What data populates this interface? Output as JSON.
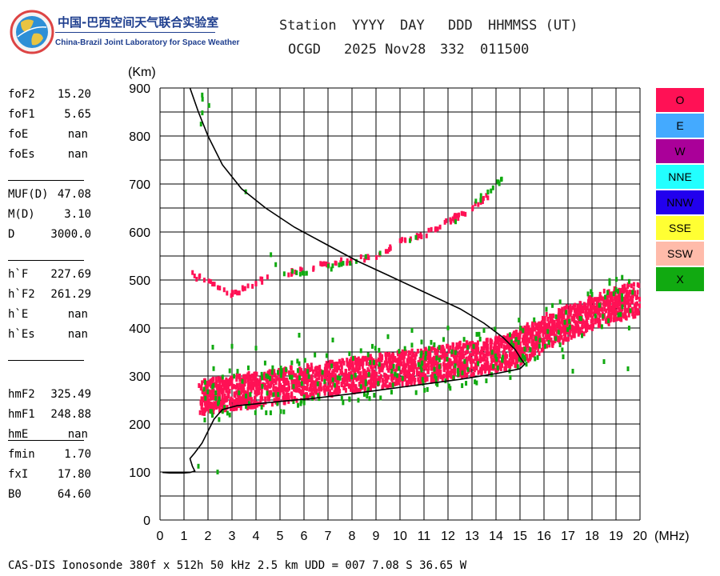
{
  "logo": {
    "title": "中国-巴西空间天气联合实验室",
    "subtitle": "China-Brazil Joint Laboratory for Space Weather"
  },
  "header": {
    "labels": [
      "Station",
      "YYYY",
      "DAY",
      "DDD",
      "HHMMSS (UT)"
    ],
    "values": [
      "OCGD",
      "2025 Nov28",
      "332",
      "011500"
    ]
  },
  "params": [
    {
      "name": "foF2",
      "value": "15.20"
    },
    {
      "name": "foF1",
      "value": "5.65"
    },
    {
      "name": "foE",
      "value": "nan"
    },
    {
      "name": "foEs",
      "value": "nan"
    },
    {
      "name": "MUF(D)",
      "value": "47.08"
    },
    {
      "name": "M(D)",
      "value": "3.10"
    },
    {
      "name": "D",
      "value": "3000.0"
    },
    {
      "name": "h`F",
      "value": "227.69"
    },
    {
      "name": "h`F2",
      "value": "261.29"
    },
    {
      "name": "h`E",
      "value": "nan"
    },
    {
      "name": "h`Es",
      "value": "nan"
    },
    {
      "name": "hmF2",
      "value": "325.49"
    },
    {
      "name": "hmF1",
      "value": "248.88"
    },
    {
      "name": "hmE",
      "value": "nan"
    },
    {
      "name": "fmin",
      "value": "1.70"
    },
    {
      "name": "fxI",
      "value": "17.80"
    },
    {
      "name": "B0",
      "value": "64.60"
    }
  ],
  "footer": "CAS-DIS Ionosonde 380f x 512h 50 kHz 2.5 km UDD = 007 7.08 S 36.65 W",
  "legend": [
    {
      "label": "O",
      "color": "#ff1155"
    },
    {
      "label": "E",
      "color": "#44aaff"
    },
    {
      "label": "W",
      "color": "#aa0099"
    },
    {
      "label": "NNE",
      "color": "#22ffff"
    },
    {
      "label": "NNW",
      "color": "#2200ee"
    },
    {
      "label": "SSE",
      "color": "#ffff33"
    },
    {
      "label": "SSW",
      "color": "#ffbbaa"
    },
    {
      "label": "X",
      "color": "#11aa11"
    }
  ],
  "chart_data": {
    "type": "scatter",
    "xlabel": "(MHz)",
    "ylabel": "(Km)",
    "xlim": [
      0,
      20
    ],
    "ylim": [
      0,
      900
    ],
    "xticks": [
      "0",
      "1",
      "2",
      "3",
      "4",
      "5",
      "6",
      "7",
      "8",
      "9",
      "10",
      "11",
      "12",
      "13",
      "14",
      "15",
      "16",
      "17",
      "18",
      "19",
      "20"
    ],
    "yticks": [
      "0",
      "100",
      "200",
      "300",
      "400",
      "500",
      "600",
      "700",
      "800",
      "900"
    ],
    "grid": true,
    "legend_placement": "right",
    "profile_curve": [
      [
        1.25,
        900
      ],
      [
        1.6,
        850
      ],
      [
        2.0,
        800
      ],
      [
        2.6,
        740
      ],
      [
        3.4,
        690
      ],
      [
        4.4,
        650
      ],
      [
        5.6,
        610
      ],
      [
        6.9,
        575
      ],
      [
        8.2,
        540
      ],
      [
        9.5,
        510
      ],
      [
        11.0,
        475
      ],
      [
        12.5,
        440
      ],
      [
        13.5,
        410
      ],
      [
        14.3,
        380
      ],
      [
        14.8,
        355
      ],
      [
        15.05,
        335
      ],
      [
        15.2,
        325
      ],
      [
        15.0,
        315
      ],
      [
        14.0,
        305
      ],
      [
        12.5,
        293
      ],
      [
        11.0,
        283
      ],
      [
        9.5,
        273
      ],
      [
        8.0,
        263
      ],
      [
        6.5,
        254
      ],
      [
        5.0,
        247
      ],
      [
        4.0,
        242
      ],
      [
        3.2,
        238
      ],
      [
        2.6,
        230
      ],
      [
        2.25,
        210
      ],
      [
        2.0,
        185
      ],
      [
        1.75,
        160
      ],
      [
        1.45,
        140
      ],
      [
        1.25,
        128
      ],
      [
        1.35,
        112
      ],
      [
        1.45,
        102
      ],
      [
        1.25,
        99
      ],
      [
        1.0,
        98
      ],
      [
        0.4,
        98
      ],
      [
        0.1,
        99
      ]
    ],
    "o_trace_main": [
      [
        1.7,
        255
      ],
      [
        2.5,
        262
      ],
      [
        3.5,
        268
      ],
      [
        4.5,
        275
      ],
      [
        5.5,
        282
      ],
      [
        6.5,
        290
      ],
      [
        7.5,
        297
      ],
      [
        8.5,
        305
      ],
      [
        9.5,
        312
      ],
      [
        10.5,
        318
      ],
      [
        11.5,
        325
      ],
      [
        12.5,
        333
      ],
      [
        13.5,
        340
      ],
      [
        14.5,
        350
      ],
      [
        15.2,
        365
      ],
      [
        16,
        390
      ],
      [
        17,
        410
      ],
      [
        18,
        430
      ],
      [
        19,
        450
      ],
      [
        20,
        460
      ]
    ],
    "o_trace_multihop": [
      [
        1.2,
        515
      ],
      [
        3.0,
        470
      ],
      [
        3.5,
        480
      ],
      [
        4.3,
        500
      ],
      [
        5.5,
        515
      ],
      [
        7.0,
        535
      ],
      [
        8.0,
        540
      ],
      [
        9.0,
        550
      ],
      [
        10.0,
        580
      ],
      [
        11.0,
        595
      ],
      [
        12.0,
        620
      ],
      [
        12.5,
        635
      ],
      [
        13.3,
        660
      ],
      [
        13.8,
        680
      ]
    ],
    "x_trace_multihop": [
      [
        1.7,
        825
      ],
      [
        1.75,
        898
      ],
      [
        5.0,
        510
      ],
      [
        6.5,
        520
      ],
      [
        8.2,
        540
      ],
      [
        10.5,
        585
      ],
      [
        12.5,
        630
      ],
      [
        14.0,
        700
      ],
      [
        14.3,
        708
      ]
    ],
    "x_trace_scatter": [
      [
        1.6,
        112
      ],
      [
        2.4,
        100
      ],
      [
        2.2,
        360
      ],
      [
        3.0,
        362
      ],
      [
        4.0,
        358
      ],
      [
        5.8,
        385
      ],
      [
        7.2,
        375
      ],
      [
        9.5,
        382
      ],
      [
        10.5,
        395
      ],
      [
        12.0,
        400
      ],
      [
        13.5,
        395
      ],
      [
        16.2,
        370
      ],
      [
        16.8,
        340
      ],
      [
        17.5,
        420
      ],
      [
        18.0,
        470
      ],
      [
        19.0,
        480
      ],
      [
        19.5,
        315
      ],
      [
        18.5,
        330
      ],
      [
        17.2,
        310
      ]
    ]
  }
}
